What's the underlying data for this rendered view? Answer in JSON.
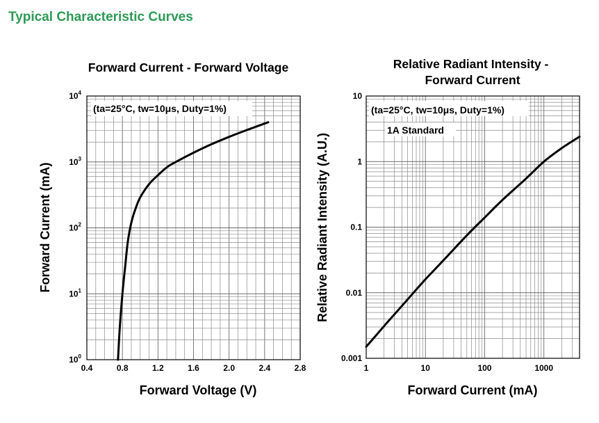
{
  "page": {
    "title": "Typical Characteristic Curves"
  },
  "colors": {
    "title": "#2e9a57",
    "curve": "#000000",
    "grid": "#8a8a8a"
  },
  "chart_data": [
    {
      "type": "line",
      "title": "Forward Current - Forward Voltage",
      "xlabel": "Forward Voltage (V)",
      "ylabel": "Forward Current (mA)",
      "xscale": "linear",
      "yscale": "log",
      "xlim": [
        0.4,
        2.8
      ],
      "ylim": [
        1,
        10000
      ],
      "xticks": [
        "0.4",
        "0.8",
        "1.2",
        "1.6",
        "2.0",
        "2.4",
        "2.8"
      ],
      "yticks": [
        {
          "base": "10",
          "exp": "0"
        },
        {
          "base": "10",
          "exp": "1"
        },
        {
          "base": "10",
          "exp": "2"
        },
        {
          "base": "10",
          "exp": "3"
        },
        {
          "base": "10",
          "exp": "4"
        }
      ],
      "grid": true,
      "annotation": "(ta=25°C, tw=10μs, Duty=1%)",
      "series": [
        {
          "x": [
            0.75,
            0.77,
            0.8,
            0.83,
            0.86,
            0.9,
            0.95,
            1.0,
            1.1,
            1.2,
            1.3,
            1.4,
            1.6,
            1.8,
            2.0,
            2.2,
            2.44
          ],
          "y": [
            1,
            3,
            10,
            25,
            60,
            120,
            200,
            290,
            460,
            630,
            830,
            1000,
            1380,
            1850,
            2400,
            3050,
            4000
          ]
        }
      ]
    },
    {
      "type": "line",
      "title": "Relative Radiant Intensity - Forward Current",
      "xlabel": "Forward Current (mA)",
      "ylabel": "Relative Radiant Intensity (A.U.)",
      "xscale": "log",
      "yscale": "log",
      "xlim": [
        1,
        4000
      ],
      "ylim": [
        0.001,
        10
      ],
      "xticks": [
        "1",
        "10",
        "100",
        "1000"
      ],
      "yticks": [
        "0.001",
        "0.01",
        "0.1",
        "1",
        "10"
      ],
      "grid": true,
      "annotation": "(ta=25°C, tw=10μs, Duty=1%)",
      "annotation2": "1A Standard",
      "series": [
        {
          "x": [
            1,
            2,
            3,
            5,
            10,
            20,
            50,
            100,
            200,
            500,
            1000,
            2000,
            4000
          ],
          "y": [
            0.0015,
            0.0031,
            0.0047,
            0.0079,
            0.016,
            0.031,
            0.075,
            0.14,
            0.26,
            0.55,
            1.0,
            1.6,
            2.4
          ]
        }
      ]
    }
  ]
}
